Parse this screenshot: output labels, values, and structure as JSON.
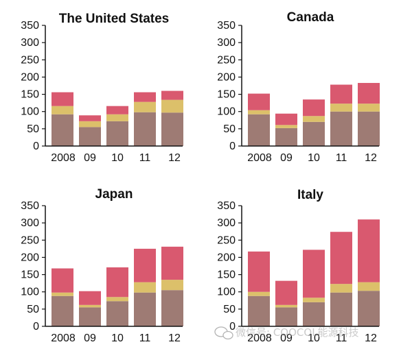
{
  "colors": {
    "base": "#9e7b74",
    "middle": "#dcc06a",
    "top": "#d9596f",
    "axis": "#111111"
  },
  "watermark": {
    "icon": "wechat-icon",
    "text": "微信号: COOCOL能源科技"
  },
  "chart_data": [
    {
      "type": "bar",
      "stacked": true,
      "title": "The United States",
      "categories": [
        "2008",
        "09",
        "10",
        "11",
        "12"
      ],
      "ylim": [
        0,
        350
      ],
      "yticks": [
        "0",
        "50",
        "100",
        "150",
        "200",
        "250",
        "300",
        "350"
      ],
      "grid": false,
      "series": [
        {
          "values": [
            92,
            55,
            72,
            98,
            97
          ]
        },
        {
          "values": [
            24,
            17,
            20,
            30,
            37
          ]
        },
        {
          "values": [
            40,
            17,
            24,
            28,
            26
          ]
        }
      ]
    },
    {
      "type": "bar",
      "stacked": true,
      "title": "Canada",
      "categories": [
        "2008",
        "09",
        "10",
        "11",
        "12"
      ],
      "ylim": [
        0,
        350
      ],
      "yticks": [
        "0",
        "50",
        "100",
        "150",
        "200",
        "250",
        "300",
        "350"
      ],
      "grid": false,
      "series": [
        {
          "values": [
            92,
            52,
            70,
            100,
            100
          ]
        },
        {
          "values": [
            12,
            9,
            17,
            23,
            23
          ]
        },
        {
          "values": [
            48,
            33,
            48,
            55,
            60
          ]
        }
      ]
    },
    {
      "type": "bar",
      "stacked": true,
      "title": "Japan",
      "categories": [
        "2008",
        "09",
        "10",
        "11",
        "12"
      ],
      "ylim": [
        0,
        350
      ],
      "yticks": [
        "0",
        "50",
        "100",
        "150",
        "200",
        "250",
        "300",
        "350"
      ],
      "grid": false,
      "series": [
        {
          "values": [
            88,
            55,
            73,
            98,
            105
          ]
        },
        {
          "values": [
            10,
            7,
            12,
            30,
            30
          ]
        },
        {
          "values": [
            70,
            40,
            86,
            97,
            96
          ]
        }
      ]
    },
    {
      "type": "bar",
      "stacked": true,
      "title": "Italy",
      "categories": [
        "2008",
        "09",
        "10",
        "11",
        "12"
      ],
      "ylim": [
        0,
        350
      ],
      "yticks": [
        "0",
        "50",
        "100",
        "150",
        "200",
        "250",
        "300",
        "350"
      ],
      "grid": false,
      "series": [
        {
          "values": [
            88,
            55,
            70,
            98,
            103
          ]
        },
        {
          "values": [
            12,
            7,
            13,
            25,
            25
          ]
        },
        {
          "values": [
            117,
            70,
            139,
            151,
            182
          ]
        }
      ]
    }
  ]
}
